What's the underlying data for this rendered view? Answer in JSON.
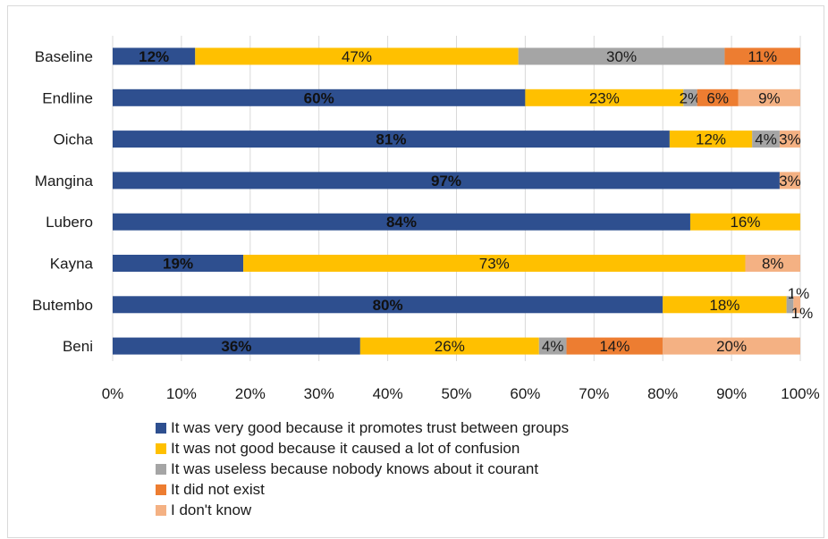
{
  "chart_data": {
    "type": "bar",
    "orientation": "horizontal",
    "stacked": true,
    "normalized": true,
    "categories": [
      "Baseline",
      "Endline",
      "Oicha",
      "Mangina",
      "Lubero",
      "Kayna",
      "Butembo",
      "Beni"
    ],
    "series": [
      {
        "name": "It was very good because it promotes trust between groups",
        "color": "#2e4f8f",
        "values": [
          12,
          60,
          81,
          97,
          84,
          19,
          80,
          36
        ],
        "labels": [
          "12%",
          "60%",
          "81%",
          "97%",
          "84%",
          "19%",
          "80%",
          "36%"
        ]
      },
      {
        "name": "It was not good because it caused a lot of confusion",
        "color": "#ffc000",
        "values": [
          47,
          23,
          12,
          0,
          16,
          73,
          18,
          26
        ],
        "labels": [
          "47%",
          "23%",
          "12%",
          "",
          "16%",
          "73%",
          "18%",
          "26%"
        ]
      },
      {
        "name": "It was useless because nobody knows about it courant",
        "color": "#a5a5a5",
        "values": [
          30,
          2,
          4,
          0,
          0,
          0,
          1,
          4
        ],
        "labels": [
          "30%",
          "2%",
          "4%",
          "",
          "",
          "",
          "1%",
          "4%"
        ]
      },
      {
        "name": "It did not exist",
        "color": "#ed7d31",
        "values": [
          11,
          6,
          0,
          0,
          0,
          0,
          0,
          14
        ],
        "labels": [
          "11%",
          "6%",
          "",
          "",
          "",
          "",
          "",
          "14%"
        ]
      },
      {
        "name": "I don't know",
        "color": "#f4b183",
        "values": [
          0,
          9,
          3,
          3,
          0,
          8,
          1,
          20
        ],
        "labels": [
          "",
          "9%",
          "3%",
          "3%",
          "",
          "8%",
          "1%",
          "20%"
        ]
      }
    ],
    "xlim": [
      0,
      100
    ],
    "xticks": [
      "0%",
      "10%",
      "20%",
      "30%",
      "40%",
      "50%",
      "60%",
      "70%",
      "80%",
      "90%",
      "100%"
    ],
    "grid": true,
    "legend_position": "bottom"
  }
}
